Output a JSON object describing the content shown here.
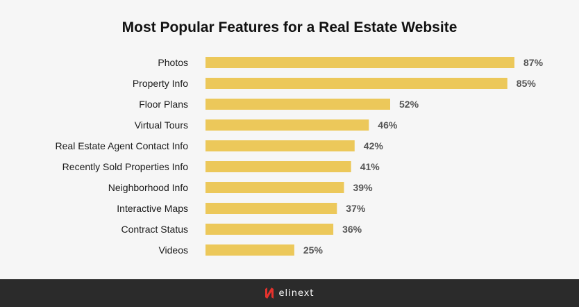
{
  "chart_data": {
    "type": "bar",
    "orientation": "horizontal",
    "title": "Most Popular Features for a Real Estate Website",
    "categories": [
      "Photos",
      "Property Info",
      "Floor Plans",
      "Virtual Tours",
      "Real Estate Agent Contact Info",
      "Recently Sold Properties Info",
      "Neighborhood Info",
      "Interactive Maps",
      "Contract Status",
      "Videos"
    ],
    "values": [
      87,
      85,
      52,
      46,
      42,
      41,
      39,
      37,
      36,
      25
    ],
    "value_labels": [
      "87%",
      "85%",
      "52%",
      "46%",
      "42%",
      "41%",
      "39%",
      "37%",
      "36%",
      "25%"
    ],
    "unit": "%",
    "xlabel": "",
    "ylabel": "",
    "bar_color": "#ecc85a",
    "grid": false,
    "legend": "none"
  },
  "footer": {
    "brand": "elinext",
    "logo_icon": "elinext-logo-icon",
    "logo_color": "#e5322d"
  }
}
